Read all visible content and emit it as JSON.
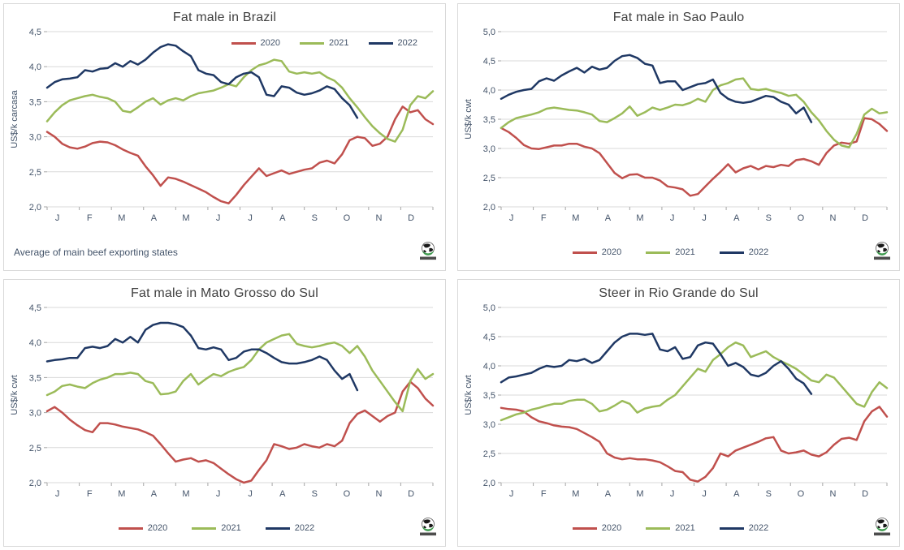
{
  "page": {
    "background": "#ffffff"
  },
  "colors": {
    "series_2020": "#C0504D",
    "series_2021": "#9BBB59",
    "series_2022": "#1F3864",
    "gridline": "#D9D9D9",
    "axis": "#A6A6A6",
    "tick_text": "#44546A",
    "title_text": "#404040"
  },
  "icons": {
    "logo": "globe-logo"
  },
  "chart_data": [
    {
      "type": "line",
      "title": "Fat male in Brazil",
      "ylabel": "US$/k carcasa",
      "footnote": "Average  of main beef exporting states",
      "legend_position": "inside-top-right",
      "ylim": [
        2.0,
        4.5
      ],
      "ytick_step": 0.5,
      "decimal_separator": ",",
      "grid": "horizontal",
      "x_months": [
        "J",
        "F",
        "M",
        "A",
        "M",
        "J",
        "J",
        "A",
        "S",
        "O",
        "N",
        "D"
      ],
      "x_unit": "weeks",
      "series": [
        {
          "name": "2020",
          "color": "#C0504D",
          "values": [
            3.07,
            3.0,
            2.9,
            2.85,
            2.83,
            2.86,
            2.91,
            2.93,
            2.92,
            2.88,
            2.82,
            2.77,
            2.73,
            2.58,
            2.45,
            2.3,
            2.42,
            2.4,
            2.36,
            2.31,
            2.26,
            2.21,
            2.14,
            2.08,
            2.05,
            2.17,
            2.31,
            2.43,
            2.55,
            2.44,
            2.48,
            2.52,
            2.47,
            2.5,
            2.53,
            2.55,
            2.63,
            2.66,
            2.62,
            2.75,
            2.95,
            3.0,
            2.98,
            2.87,
            2.9,
            3.0,
            3.25,
            3.43,
            3.35,
            3.38,
            3.25,
            3.18
          ]
        },
        {
          "name": "2021",
          "color": "#9BBB59",
          "values": [
            3.22,
            3.35,
            3.45,
            3.52,
            3.55,
            3.58,
            3.6,
            3.57,
            3.55,
            3.5,
            3.37,
            3.35,
            3.42,
            3.5,
            3.55,
            3.46,
            3.52,
            3.55,
            3.52,
            3.58,
            3.62,
            3.64,
            3.66,
            3.7,
            3.75,
            3.72,
            3.85,
            3.95,
            4.02,
            4.05,
            4.1,
            4.08,
            3.93,
            3.9,
            3.92,
            3.9,
            3.92,
            3.85,
            3.8,
            3.7,
            3.55,
            3.42,
            3.28,
            3.15,
            3.05,
            2.97,
            2.93,
            3.1,
            3.45,
            3.58,
            3.55,
            3.65
          ]
        },
        {
          "name": "2022",
          "color": "#1F3864",
          "values": [
            3.7,
            3.78,
            3.82,
            3.83,
            3.85,
            3.95,
            3.93,
            3.97,
            3.98,
            4.05,
            4.0,
            4.08,
            4.03,
            4.1,
            4.2,
            4.28,
            4.32,
            4.3,
            4.22,
            4.15,
            3.95,
            3.9,
            3.88,
            3.78,
            3.75,
            3.85,
            3.9,
            3.92,
            3.85,
            3.6,
            3.58,
            3.72,
            3.7,
            3.63,
            3.6,
            3.62,
            3.66,
            3.72,
            3.68,
            3.55,
            3.45,
            3.27
          ]
        }
      ]
    },
    {
      "type": "line",
      "title": "Fat male in Sao Paulo",
      "ylabel": "US$/k cwt",
      "footnote": "",
      "legend_position": "bottom",
      "ylim": [
        2.0,
        5.0
      ],
      "ytick_step": 0.5,
      "decimal_separator": ",",
      "grid": "horizontal",
      "x_months": [
        "J",
        "F",
        "M",
        "A",
        "M",
        "J",
        "J",
        "A",
        "S",
        "O",
        "N",
        "D"
      ],
      "x_unit": "weeks",
      "series": [
        {
          "name": "2020",
          "color": "#C0504D",
          "values": [
            3.35,
            3.28,
            3.18,
            3.06,
            3.0,
            2.99,
            3.02,
            3.05,
            3.05,
            3.08,
            3.08,
            3.03,
            3.0,
            2.92,
            2.75,
            2.58,
            2.49,
            2.55,
            2.56,
            2.5,
            2.5,
            2.45,
            2.35,
            2.33,
            2.3,
            2.19,
            2.22,
            2.35,
            2.48,
            2.6,
            2.73,
            2.59,
            2.66,
            2.7,
            2.64,
            2.7,
            2.68,
            2.72,
            2.7,
            2.8,
            2.82,
            2.78,
            2.72,
            2.92,
            3.05,
            3.1,
            3.08,
            3.12,
            3.52,
            3.5,
            3.42,
            3.3
          ]
        },
        {
          "name": "2021",
          "color": "#9BBB59",
          "values": [
            3.35,
            3.45,
            3.52,
            3.55,
            3.58,
            3.62,
            3.68,
            3.7,
            3.68,
            3.66,
            3.65,
            3.62,
            3.58,
            3.47,
            3.45,
            3.52,
            3.6,
            3.72,
            3.56,
            3.62,
            3.7,
            3.66,
            3.7,
            3.75,
            3.74,
            3.78,
            3.85,
            3.8,
            4.0,
            4.08,
            4.12,
            4.18,
            4.2,
            4.02,
            4.0,
            4.02,
            3.98,
            3.95,
            3.9,
            3.92,
            3.8,
            3.62,
            3.48,
            3.3,
            3.15,
            3.05,
            3.02,
            3.25,
            3.58,
            3.68,
            3.6,
            3.62
          ]
        },
        {
          "name": "2022",
          "color": "#1F3864",
          "values": [
            3.85,
            3.92,
            3.97,
            4.0,
            4.02,
            4.15,
            4.2,
            4.16,
            4.25,
            4.32,
            4.38,
            4.3,
            4.4,
            4.35,
            4.38,
            4.5,
            4.58,
            4.6,
            4.55,
            4.45,
            4.42,
            4.12,
            4.15,
            4.15,
            4.0,
            4.05,
            4.1,
            4.12,
            4.18,
            3.95,
            3.85,
            3.8,
            3.78,
            3.8,
            3.85,
            3.9,
            3.88,
            3.8,
            3.75,
            3.6,
            3.7,
            3.45
          ]
        }
      ]
    },
    {
      "type": "line",
      "title": "Fat male in Mato Grosso do Sul",
      "ylabel": "US$/k  cwt",
      "footnote": "",
      "legend_position": "bottom",
      "ylim": [
        2.0,
        4.5
      ],
      "ytick_step": 0.5,
      "decimal_separator": ",",
      "grid": "horizontal",
      "x_months": [
        "J",
        "F",
        "M",
        "A",
        "M",
        "J",
        "J",
        "A",
        "S",
        "O",
        "N",
        "D"
      ],
      "x_unit": "weeks",
      "series": [
        {
          "name": "2020",
          "color": "#C0504D",
          "values": [
            3.02,
            3.08,
            3.0,
            2.9,
            2.82,
            2.75,
            2.72,
            2.85,
            2.85,
            2.83,
            2.8,
            2.78,
            2.76,
            2.72,
            2.67,
            2.55,
            2.42,
            2.3,
            2.33,
            2.35,
            2.3,
            2.32,
            2.28,
            2.2,
            2.12,
            2.05,
            2.0,
            2.03,
            2.18,
            2.32,
            2.55,
            2.52,
            2.48,
            2.5,
            2.55,
            2.52,
            2.5,
            2.55,
            2.52,
            2.6,
            2.85,
            2.98,
            3.03,
            2.95,
            2.87,
            2.95,
            3.0,
            3.3,
            3.44,
            3.35,
            3.2,
            3.1
          ]
        },
        {
          "name": "2021",
          "color": "#9BBB59",
          "values": [
            3.25,
            3.3,
            3.38,
            3.4,
            3.37,
            3.35,
            3.42,
            3.47,
            3.5,
            3.55,
            3.55,
            3.57,
            3.55,
            3.45,
            3.42,
            3.26,
            3.27,
            3.3,
            3.45,
            3.55,
            3.4,
            3.48,
            3.55,
            3.52,
            3.58,
            3.62,
            3.65,
            3.75,
            3.9,
            4.0,
            4.05,
            4.1,
            4.12,
            3.98,
            3.95,
            3.93,
            3.95,
            3.98,
            4.0,
            3.95,
            3.85,
            3.95,
            3.8,
            3.6,
            3.45,
            3.3,
            3.15,
            3.02,
            3.45,
            3.62,
            3.48,
            3.55
          ]
        },
        {
          "name": "2022",
          "color": "#1F3864",
          "values": [
            3.73,
            3.75,
            3.76,
            3.78,
            3.78,
            3.92,
            3.94,
            3.92,
            3.95,
            4.05,
            4.0,
            4.08,
            4.0,
            4.18,
            4.25,
            4.28,
            4.28,
            4.26,
            4.22,
            4.1,
            3.92,
            3.9,
            3.93,
            3.9,
            3.75,
            3.78,
            3.87,
            3.9,
            3.9,
            3.85,
            3.78,
            3.72,
            3.7,
            3.7,
            3.72,
            3.75,
            3.8,
            3.75,
            3.6,
            3.48,
            3.55,
            3.32
          ]
        }
      ]
    },
    {
      "type": "line",
      "title": "Steer  in Rio Grande do Sul",
      "ylabel": "US$/k  cwt",
      "footnote": "",
      "legend_position": "bottom",
      "ylim": [
        2.0,
        5.0
      ],
      "ytick_step": 0.5,
      "decimal_separator": ",",
      "grid": "horizontal",
      "x_months": [
        "J",
        "F",
        "M",
        "A",
        "M",
        "J",
        "J",
        "A",
        "S",
        "O",
        "N",
        "D"
      ],
      "x_unit": "weeks",
      "series": [
        {
          "name": "2020",
          "color": "#C0504D",
          "values": [
            3.28,
            3.26,
            3.25,
            3.22,
            3.12,
            3.05,
            3.02,
            2.98,
            2.96,
            2.95,
            2.92,
            2.85,
            2.78,
            2.7,
            2.5,
            2.43,
            2.4,
            2.42,
            2.4,
            2.4,
            2.38,
            2.35,
            2.28,
            2.2,
            2.18,
            2.05,
            2.02,
            2.1,
            2.25,
            2.5,
            2.45,
            2.55,
            2.6,
            2.65,
            2.7,
            2.76,
            2.78,
            2.55,
            2.5,
            2.52,
            2.55,
            2.48,
            2.45,
            2.52,
            2.65,
            2.75,
            2.77,
            2.73,
            3.05,
            3.22,
            3.3,
            3.13
          ]
        },
        {
          "name": "2021",
          "color": "#9BBB59",
          "values": [
            3.07,
            3.12,
            3.17,
            3.2,
            3.25,
            3.28,
            3.32,
            3.35,
            3.35,
            3.4,
            3.42,
            3.42,
            3.35,
            3.22,
            3.25,
            3.32,
            3.4,
            3.35,
            3.2,
            3.27,
            3.3,
            3.32,
            3.42,
            3.5,
            3.65,
            3.8,
            3.95,
            3.9,
            4.1,
            4.2,
            4.32,
            4.4,
            4.35,
            4.15,
            4.2,
            4.25,
            4.15,
            4.08,
            4.02,
            3.95,
            3.85,
            3.75,
            3.72,
            3.85,
            3.8,
            3.65,
            3.5,
            3.35,
            3.3,
            3.55,
            3.72,
            3.62
          ]
        },
        {
          "name": "2022",
          "color": "#1F3864",
          "values": [
            3.72,
            3.8,
            3.82,
            3.85,
            3.88,
            3.95,
            4.0,
            3.98,
            4.0,
            4.1,
            4.08,
            4.12,
            4.05,
            4.1,
            4.25,
            4.4,
            4.5,
            4.55,
            4.55,
            4.53,
            4.55,
            4.28,
            4.25,
            4.32,
            4.12,
            4.15,
            4.35,
            4.4,
            4.38,
            4.2,
            4.0,
            4.05,
            3.98,
            3.85,
            3.82,
            3.88,
            4.0,
            4.08,
            3.95,
            3.78,
            3.7,
            3.52
          ]
        }
      ]
    }
  ]
}
